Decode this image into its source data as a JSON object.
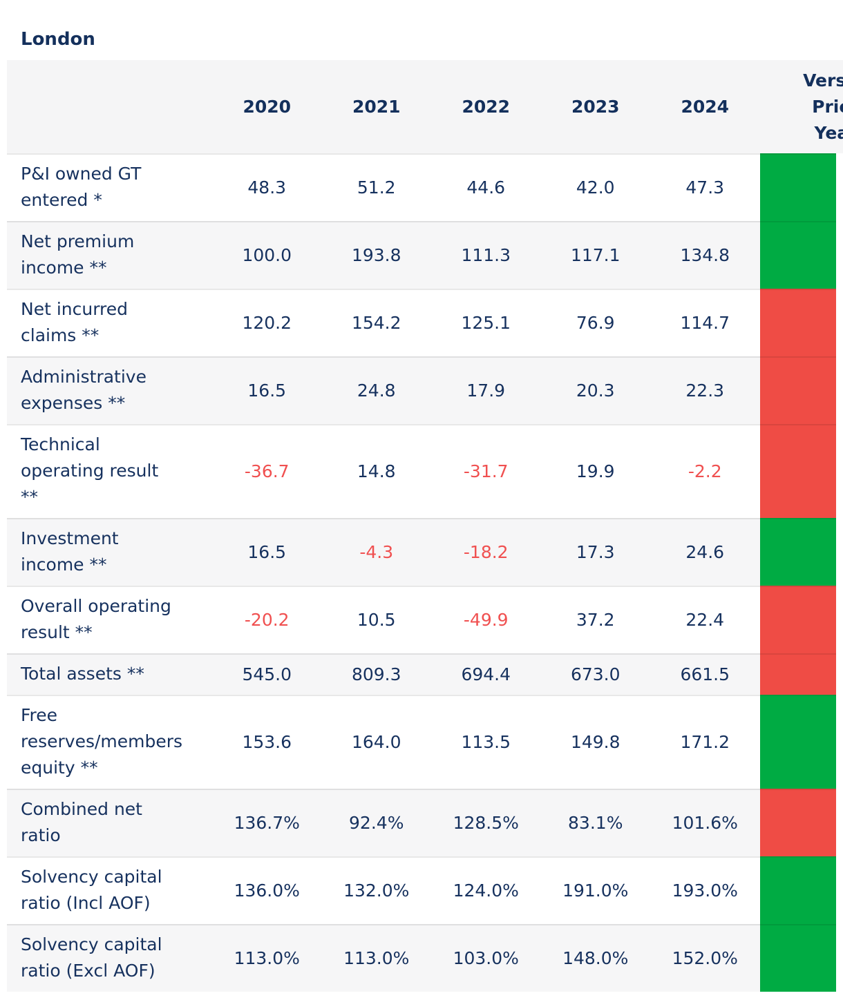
{
  "title": "London",
  "table": {
    "year_headers": [
      "2020",
      "2021",
      "2022",
      "2023",
      "2024"
    ],
    "change_header": "Versus Prior Year",
    "status_colors": {
      "green": "#00ab43",
      "red": "#ef4c45"
    },
    "negative_value_color": "#f05050",
    "rows": [
      {
        "label": "P&I owned GT\nentered *",
        "values": [
          "48.3",
          "51.2",
          "44.6",
          "42.0",
          "47.3"
        ],
        "status": "green"
      },
      {
        "label": "Net premium\nincome **",
        "values": [
          "100.0",
          "193.8",
          "111.3",
          "117.1",
          "134.8"
        ],
        "status": "green"
      },
      {
        "label": "Net incurred\nclaims **",
        "values": [
          "120.2",
          "154.2",
          "125.1",
          "76.9",
          "114.7"
        ],
        "status": "red"
      },
      {
        "label": "Administrative\nexpenses **",
        "values": [
          "16.5",
          "24.8",
          "17.9",
          "20.3",
          "22.3"
        ],
        "status": "red"
      },
      {
        "label": "Technical\noperating result\n**",
        "values": [
          "-36.7",
          "14.8",
          "-31.7",
          "19.9",
          "-2.2"
        ],
        "status": "red"
      },
      {
        "label": "Investment\nincome **",
        "values": [
          "16.5",
          "-4.3",
          "-18.2",
          "17.3",
          "24.6"
        ],
        "status": "green"
      },
      {
        "label": "Overall operating\nresult **",
        "values": [
          "-20.2",
          "10.5",
          "-49.9",
          "37.2",
          "22.4"
        ],
        "status": "red"
      },
      {
        "label": "Total assets **",
        "values": [
          "545.0",
          "809.3",
          "694.4",
          "673.0",
          "661.5"
        ],
        "status": "red"
      },
      {
        "label": "Free\nreserves/members\nequity **",
        "values": [
          "153.6",
          "164.0",
          "113.5",
          "149.8",
          "171.2"
        ],
        "status": "green"
      },
      {
        "label": "Combined net\nratio",
        "values": [
          "136.7%",
          "92.4%",
          "128.5%",
          "83.1%",
          "101.6%"
        ],
        "status": "red"
      },
      {
        "label": "Solvency capital\nratio (Incl AOF)",
        "values": [
          "136.0%",
          "132.0%",
          "124.0%",
          "191.0%",
          "193.0%"
        ],
        "status": "green"
      },
      {
        "label": "Solvency capital\nratio (Excl AOF)",
        "values": [
          "113.0%",
          "113.0%",
          "103.0%",
          "148.0%",
          "152.0%"
        ],
        "status": "green"
      }
    ]
  }
}
